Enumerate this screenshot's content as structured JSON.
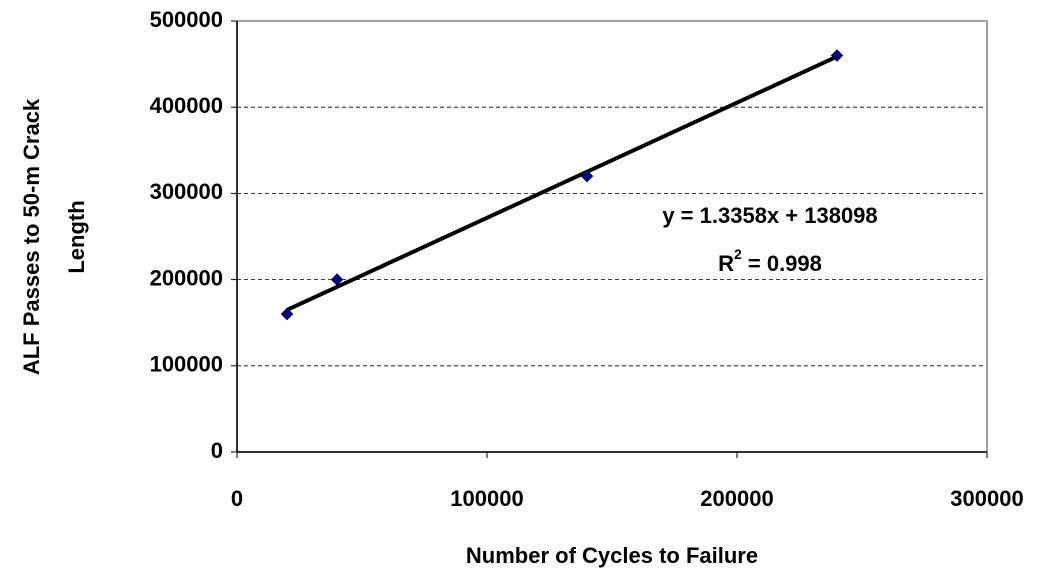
{
  "chart_data": {
    "type": "scatter",
    "x_label": "Number of Cycles to Failure",
    "y_label": [
      "ALF Passes to 50-m Crack",
      "Length"
    ],
    "series": [
      {
        "name": "ALF Passes",
        "color": "#000080",
        "x": [
          20000,
          40000,
          140000,
          240000
        ],
        "values": [
          160000,
          200000,
          320000,
          460000
        ]
      }
    ],
    "trendline": {
      "slope": 1.3358,
      "intercept": 138098,
      "color": "#000000"
    },
    "annotations": [
      "y = 1.3358x + 138098",
      {
        "base": "R",
        "sup": "2",
        "rest": " = 0.998"
      }
    ],
    "xlim": [
      0,
      300000
    ],
    "xticks": [
      0,
      100000,
      200000,
      300000
    ],
    "ylim": [
      0,
      500000
    ],
    "yticks": [
      0,
      100000,
      200000,
      300000,
      400000,
      500000
    ],
    "grid": true
  }
}
